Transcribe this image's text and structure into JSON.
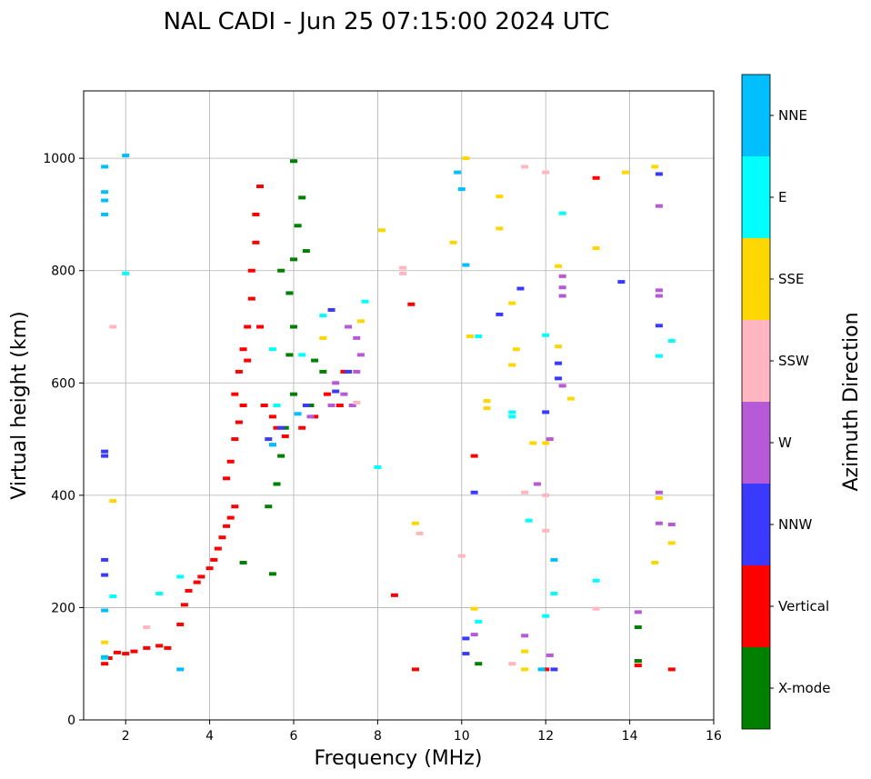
{
  "chart_data": {
    "type": "scatter",
    "title": "NAL CADI - Jun 25 07:15:00 2024 UTC",
    "xlabel": "Frequency (MHz)",
    "ylabel": "Virtual height (km)",
    "xlim": [
      1,
      16
    ],
    "ylim": [
      0,
      1120
    ],
    "xticks": [
      2,
      4,
      6,
      8,
      10,
      12,
      14,
      16
    ],
    "yticks": [
      0,
      200,
      400,
      600,
      800,
      1000
    ],
    "grid": true,
    "colorbar": {
      "title": "Azimuth Direction",
      "categories": [
        {
          "name": "X-mode",
          "color": "#008000"
        },
        {
          "name": "Vertical",
          "color": "#ff0000"
        },
        {
          "name": "NNW",
          "color": "#3a3aff"
        },
        {
          "name": "W",
          "color": "#b65ad8"
        },
        {
          "name": "SSW",
          "color": "#ffb6c1"
        },
        {
          "name": "SSE",
          "color": "#ffd700"
        },
        {
          "name": "E",
          "color": "#00ffff"
        },
        {
          "name": "NNE",
          "color": "#00bfff"
        }
      ]
    },
    "series": [
      {
        "name": "Vertical",
        "points": [
          [
            1.5,
            100
          ],
          [
            1.6,
            110
          ],
          [
            1.8,
            120
          ],
          [
            2.0,
            118
          ],
          [
            2.2,
            122
          ],
          [
            2.5,
            128
          ],
          [
            2.8,
            132
          ],
          [
            3.0,
            128
          ],
          [
            3.3,
            170
          ],
          [
            3.4,
            205
          ],
          [
            3.5,
            230
          ],
          [
            3.7,
            245
          ],
          [
            3.8,
            255
          ],
          [
            4.0,
            270
          ],
          [
            4.1,
            285
          ],
          [
            4.2,
            305
          ],
          [
            4.3,
            325
          ],
          [
            4.4,
            345
          ],
          [
            4.5,
            360
          ],
          [
            4.6,
            380
          ],
          [
            4.4,
            430
          ],
          [
            4.5,
            460
          ],
          [
            4.6,
            500
          ],
          [
            4.7,
            530
          ],
          [
            4.6,
            580
          ],
          [
            4.7,
            620
          ],
          [
            4.8,
            660
          ],
          [
            4.9,
            700
          ],
          [
            5.0,
            750
          ],
          [
            5.0,
            800
          ],
          [
            5.1,
            850
          ],
          [
            5.1,
            900
          ],
          [
            5.2,
            950
          ],
          [
            5.3,
            560
          ],
          [
            5.5,
            540
          ],
          [
            5.6,
            520
          ],
          [
            5.8,
            505
          ],
          [
            6.2,
            520
          ],
          [
            6.5,
            540
          ],
          [
            6.8,
            580
          ],
          [
            7.2,
            620
          ],
          [
            7.1,
            560
          ],
          [
            8.8,
            740
          ],
          [
            8.4,
            222
          ],
          [
            8.9,
            90
          ],
          [
            10.3,
            470
          ],
          [
            12.0,
            90
          ],
          [
            13.2,
            965
          ],
          [
            14.2,
            97
          ],
          [
            14.2,
            105
          ],
          [
            15.0,
            90
          ],
          [
            4.9,
            640
          ],
          [
            5.2,
            700
          ],
          [
            4.8,
            560
          ]
        ]
      },
      {
        "name": "X-mode",
        "points": [
          [
            5.5,
            260
          ],
          [
            5.4,
            380
          ],
          [
            5.6,
            420
          ],
          [
            5.7,
            470
          ],
          [
            5.8,
            520
          ],
          [
            6.0,
            580
          ],
          [
            5.9,
            650
          ],
          [
            6.0,
            700
          ],
          [
            5.9,
            760
          ],
          [
            6.0,
            820
          ],
          [
            6.1,
            880
          ],
          [
            6.2,
            930
          ],
          [
            6.0,
            995
          ],
          [
            6.5,
            640
          ],
          [
            6.7,
            620
          ],
          [
            6.4,
            560
          ],
          [
            4.8,
            280
          ],
          [
            10.4,
            100
          ],
          [
            14.2,
            105
          ],
          [
            14.2,
            165
          ],
          [
            6.3,
            835
          ],
          [
            5.7,
            800
          ]
        ]
      },
      {
        "name": "NNW",
        "points": [
          [
            1.5,
            285
          ],
          [
            1.5,
            258
          ],
          [
            1.5,
            478
          ],
          [
            1.5,
            470
          ],
          [
            5.4,
            500
          ],
          [
            5.7,
            520
          ],
          [
            6.3,
            560
          ],
          [
            7.0,
            585
          ],
          [
            7.3,
            620
          ],
          [
            10.3,
            405
          ],
          [
            10.1,
            145
          ],
          [
            10.1,
            118
          ],
          [
            10.9,
            722
          ],
          [
            12.3,
            635
          ],
          [
            12.0,
            548
          ],
          [
            12.3,
            608
          ],
          [
            12.2,
            90
          ],
          [
            13.8,
            780
          ],
          [
            14.7,
            702
          ],
          [
            14.7,
            972
          ],
          [
            11.4,
            768
          ],
          [
            6.9,
            730
          ]
        ]
      },
      {
        "name": "W",
        "points": [
          [
            5.5,
            490
          ],
          [
            6.4,
            540
          ],
          [
            6.9,
            560
          ],
          [
            7.0,
            600
          ],
          [
            7.2,
            580
          ],
          [
            7.4,
            560
          ],
          [
            7.5,
            620
          ],
          [
            7.6,
            650
          ],
          [
            7.3,
            700
          ],
          [
            7.5,
            680
          ],
          [
            12.4,
            790
          ],
          [
            12.4,
            770
          ],
          [
            12.4,
            755
          ],
          [
            12.4,
            595
          ],
          [
            12.1,
            500
          ],
          [
            14.7,
            765
          ],
          [
            14.7,
            755
          ],
          [
            14.7,
            915
          ],
          [
            14.7,
            405
          ],
          [
            14.7,
            350
          ],
          [
            15.0,
            348
          ],
          [
            14.2,
            192
          ],
          [
            12.1,
            115
          ],
          [
            11.5,
            150
          ],
          [
            10.3,
            152
          ],
          [
            11.8,
            420
          ]
        ]
      },
      {
        "name": "SSW",
        "points": [
          [
            1.7,
            700
          ],
          [
            2.5,
            165
          ],
          [
            8.6,
            805
          ],
          [
            8.6,
            795
          ],
          [
            12.0,
            975
          ],
          [
            11.5,
            985
          ],
          [
            11.5,
            405
          ],
          [
            12.0,
            400
          ],
          [
            12.0,
            337
          ],
          [
            13.2,
            198
          ],
          [
            10.0,
            292
          ],
          [
            9.0,
            332
          ],
          [
            11.2,
            100
          ],
          [
            7.5,
            565
          ]
        ]
      },
      {
        "name": "SSE",
        "points": [
          [
            1.5,
            138
          ],
          [
            1.7,
            390
          ],
          [
            6.7,
            680
          ],
          [
            7.6,
            710
          ],
          [
            8.1,
            872
          ],
          [
            9.8,
            850
          ],
          [
            10.2,
            683
          ],
          [
            10.3,
            198
          ],
          [
            10.6,
            568
          ],
          [
            10.6,
            555
          ],
          [
            10.9,
            875
          ],
          [
            10.9,
            932
          ],
          [
            11.2,
            742
          ],
          [
            11.2,
            632
          ],
          [
            11.3,
            660
          ],
          [
            11.5,
            122
          ],
          [
            11.5,
            90
          ],
          [
            11.7,
            493
          ],
          [
            12.0,
            493
          ],
          [
            12.3,
            665
          ],
          [
            12.3,
            808
          ],
          [
            12.6,
            572
          ],
          [
            13.2,
            840
          ],
          [
            13.9,
            975
          ],
          [
            14.6,
            280
          ],
          [
            14.6,
            985
          ],
          [
            15.0,
            315
          ],
          [
            14.7,
            395
          ],
          [
            8.9,
            350
          ],
          [
            10.1,
            1000
          ]
        ]
      },
      {
        "name": "E",
        "points": [
          [
            1.5,
            110
          ],
          [
            1.7,
            220
          ],
          [
            2.0,
            795
          ],
          [
            2.8,
            225
          ],
          [
            3.3,
            255
          ],
          [
            5.6,
            560
          ],
          [
            5.5,
            660
          ],
          [
            6.2,
            650
          ],
          [
            6.7,
            720
          ],
          [
            7.7,
            745
          ],
          [
            8.0,
            450
          ],
          [
            10.4,
            175
          ],
          [
            11.2,
            548
          ],
          [
            11.2,
            540
          ],
          [
            11.6,
            355
          ],
          [
            12.0,
            685
          ],
          [
            12.0,
            185
          ],
          [
            12.2,
            225
          ],
          [
            12.4,
            902
          ],
          [
            13.2,
            248
          ],
          [
            14.7,
            648
          ],
          [
            15.0,
            675
          ],
          [
            10.4,
            683
          ]
        ]
      },
      {
        "name": "NNE",
        "points": [
          [
            1.5,
            985
          ],
          [
            1.5,
            940
          ],
          [
            1.5,
            925
          ],
          [
            1.5,
            900
          ],
          [
            1.5,
            112
          ],
          [
            1.5,
            195
          ],
          [
            2.0,
            1005
          ],
          [
            3.3,
            90
          ],
          [
            5.5,
            490
          ],
          [
            6.1,
            545
          ],
          [
            10.0,
            945
          ],
          [
            9.9,
            975
          ],
          [
            10.1,
            810
          ],
          [
            11.9,
            90
          ],
          [
            12.2,
            285
          ]
        ]
      }
    ]
  }
}
